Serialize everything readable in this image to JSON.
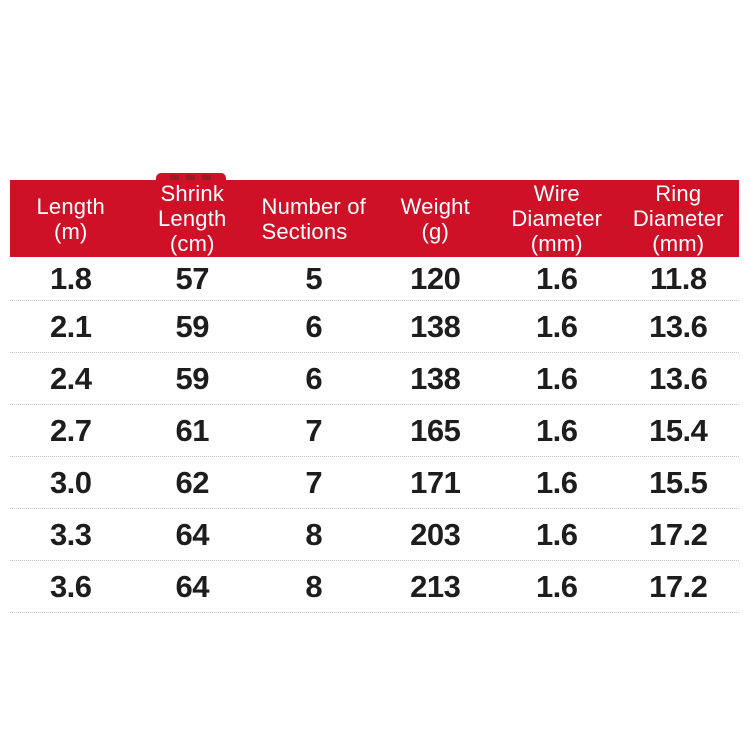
{
  "colors": {
    "accent_red": "#ce1126",
    "artifact_dark_red": "#9b1a22",
    "header_text": "#ffffff",
    "body_text": "#1d1d1d",
    "separator": "#c4c4c4",
    "background": "#ffffff"
  },
  "table": {
    "columns": [
      {
        "label_lines": [
          "Length",
          "(m)"
        ]
      },
      {
        "label_lines": [
          "Shrink",
          "Length",
          "(cm)"
        ]
      },
      {
        "label_lines": [
          "Number of",
          "Sections"
        ]
      },
      {
        "label_lines": [
          "Weight",
          "(g)"
        ]
      },
      {
        "label_lines": [
          "Wire",
          "Diameter",
          "(mm)"
        ]
      },
      {
        "label_lines": [
          "Ring",
          "Diameter",
          "(mm)"
        ]
      }
    ],
    "rows": [
      [
        "1.8",
        "57",
        "5",
        "120",
        "1.6",
        "11.8"
      ],
      [
        "2.1",
        "59",
        "6",
        "138",
        "1.6",
        "13.6"
      ],
      [
        "2.4",
        "59",
        "6",
        "138",
        "1.6",
        "13.6"
      ],
      [
        "2.7",
        "61",
        "7",
        "165",
        "1.6",
        "15.4"
      ],
      [
        "3.0",
        "62",
        "7",
        "171",
        "1.6",
        "15.5"
      ],
      [
        "3.3",
        "64",
        "8",
        "203",
        "1.6",
        "17.2"
      ],
      [
        "3.6",
        "64",
        "8",
        "213",
        "1.6",
        "17.2"
      ]
    ]
  },
  "chart_data": {
    "type": "table",
    "title": "",
    "columns": [
      "Length (m)",
      "Shrink Length (cm)",
      "Number of Sections",
      "Weight (g)",
      "Wire Diameter (mm)",
      "Ring Diameter (mm)"
    ],
    "rows": [
      [
        1.8,
        57,
        5,
        120,
        1.6,
        11.8
      ],
      [
        2.1,
        59,
        6,
        138,
        1.6,
        13.6
      ],
      [
        2.4,
        59,
        6,
        138,
        1.6,
        13.6
      ],
      [
        2.7,
        61,
        7,
        165,
        1.6,
        15.4
      ],
      [
        3.0,
        62,
        7,
        171,
        1.6,
        15.5
      ],
      [
        3.3,
        64,
        8,
        203,
        1.6,
        17.2
      ],
      [
        3.6,
        64,
        8,
        213,
        1.6,
        17.2
      ]
    ],
    "layout": {
      "header_background": "#ce1126",
      "header_text_color": "#ffffff",
      "row_separator": "dotted",
      "grid": "horizontal-only"
    }
  }
}
